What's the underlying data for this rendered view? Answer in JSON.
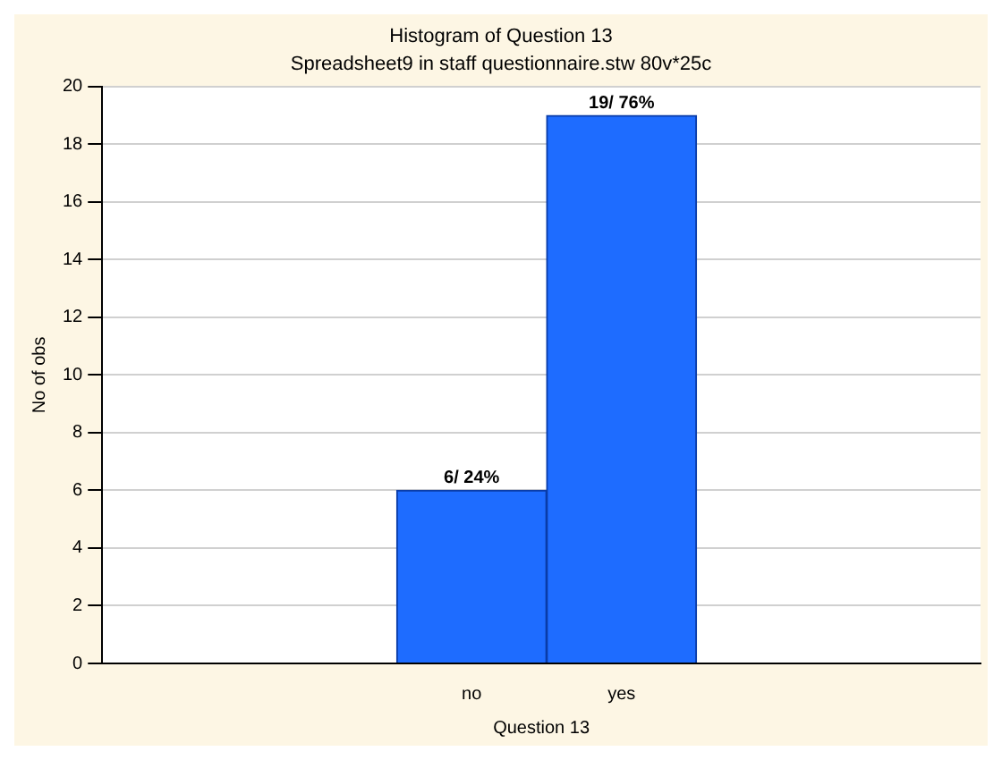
{
  "chart_data": {
    "type": "bar",
    "title": "Histogram of Question 13",
    "subtitle": "Spreadsheet9 in staff questionnaire.stw 80v*25c",
    "xlabel": "Question 13",
    "ylabel": "No of obs",
    "categories": [
      "no",
      "yes"
    ],
    "values": [
      6,
      19
    ],
    "color": "#1e6cff",
    "value_labels": [
      "6/ 24%",
      "19/ 76%"
    ],
    "ylim": [
      0,
      20
    ],
    "yticks": [
      0,
      2,
      4,
      6,
      8,
      10,
      12,
      14,
      16,
      18,
      20
    ],
    "grid": "y"
  }
}
